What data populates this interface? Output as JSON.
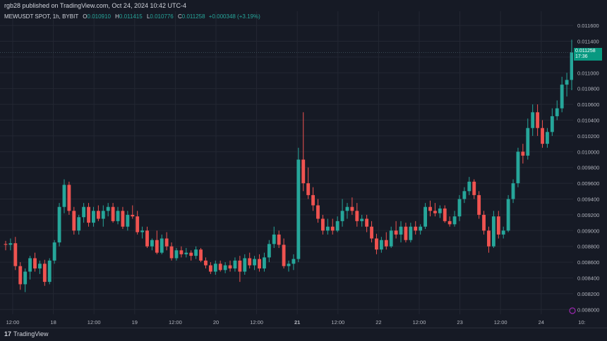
{
  "publisher_line": "rgb28 published on TradingView.com, Oct 24, 2024 10:42 UTC-4",
  "legend": {
    "symbol": "MEWUSDT SPOT, 1h, BYBIT",
    "o_label": "O",
    "o_value": "0.010910",
    "h_label": "H",
    "h_value": "0.011415",
    "l_label": "L",
    "l_value": "0.010776",
    "c_label": "C",
    "c_value": "0.011258",
    "change": "+0.000348 (+3.19%)"
  },
  "price_tag": {
    "price": "0.011258",
    "countdown": "17:36"
  },
  "footer": {
    "logo_text": "TradingView",
    "logo_mark": "17"
  },
  "colors": {
    "up": "#26a69a",
    "down": "#ef5350",
    "bg": "#161a25",
    "grid": "#232733",
    "tag": "#089981"
  },
  "chart_data": {
    "type": "candlestick",
    "title": "MEWUSDT SPOT, 1h, BYBIT",
    "ylim": [
      0.00794,
      0.01178
    ],
    "y_ticks": [
      "0.011600",
      "0.011400",
      "0.011200",
      "0.011000",
      "0.010800",
      "0.010600",
      "0.010400",
      "0.010200",
      "0.010000",
      "0.009800",
      "0.009600",
      "0.009400",
      "0.009200",
      "0.009000",
      "0.008800",
      "0.008600",
      "0.008400",
      "0.008200",
      "0.008000"
    ],
    "x_ticks": [
      "12:00",
      "18",
      "12:00",
      "19",
      "12:00",
      "20",
      "12:00",
      "21",
      "12:00",
      "22",
      "12:00",
      "23",
      "12:00",
      "24",
      "10:"
    ],
    "x_tick_bold_index": 7,
    "grid": true,
    "candles": [
      [
        0.00883,
        0.00887,
        0.00875,
        0.00882
      ],
      [
        0.00882,
        0.0089,
        0.00875,
        0.00884
      ],
      [
        0.00884,
        0.00892,
        0.0085,
        0.00855
      ],
      [
        0.00855,
        0.0086,
        0.00825,
        0.00832
      ],
      [
        0.00832,
        0.00852,
        0.00822,
        0.00848
      ],
      [
        0.00848,
        0.00868,
        0.00838,
        0.00865
      ],
      [
        0.00865,
        0.00872,
        0.00848,
        0.00852
      ],
      [
        0.00852,
        0.00862,
        0.00845,
        0.00858
      ],
      [
        0.00858,
        0.00863,
        0.0083,
        0.00835
      ],
      [
        0.00835,
        0.00865,
        0.00832,
        0.00862
      ],
      [
        0.00862,
        0.00888,
        0.00858,
        0.00885
      ],
      [
        0.00885,
        0.00935,
        0.0088,
        0.0093
      ],
      [
        0.0093,
        0.00965,
        0.00922,
        0.00958
      ],
      [
        0.00958,
        0.00962,
        0.0092,
        0.00925
      ],
      [
        0.00925,
        0.0093,
        0.00895,
        0.009
      ],
      [
        0.009,
        0.0092,
        0.00895,
        0.00917
      ],
      [
        0.00917,
        0.00935,
        0.0091,
        0.0093
      ],
      [
        0.0093,
        0.00935,
        0.00905,
        0.0091
      ],
      [
        0.0091,
        0.0093,
        0.00905,
        0.00925
      ],
      [
        0.00925,
        0.00932,
        0.00912,
        0.00915
      ],
      [
        0.00915,
        0.00932,
        0.00905,
        0.00925
      ],
      [
        0.00925,
        0.00935,
        0.00918,
        0.0093
      ],
      [
        0.0093,
        0.00935,
        0.0091,
        0.00912
      ],
      [
        0.00912,
        0.0093,
        0.00908,
        0.00925
      ],
      [
        0.00925,
        0.0093,
        0.00902,
        0.00905
      ],
      [
        0.00905,
        0.00925,
        0.009,
        0.0092
      ],
      [
        0.0092,
        0.00932,
        0.00915,
        0.00918
      ],
      [
        0.00918,
        0.00925,
        0.00895,
        0.00898
      ],
      [
        0.00898,
        0.00905,
        0.0089,
        0.009
      ],
      [
        0.009,
        0.00905,
        0.00878,
        0.0088
      ],
      [
        0.0088,
        0.0089,
        0.00875,
        0.00888
      ],
      [
        0.00888,
        0.009,
        0.0087,
        0.00872
      ],
      [
        0.00872,
        0.00895,
        0.0087,
        0.0089
      ],
      [
        0.0089,
        0.00898,
        0.00875,
        0.0088
      ],
      [
        0.0088,
        0.00885,
        0.00862,
        0.00865
      ],
      [
        0.00865,
        0.00878,
        0.00862,
        0.00875
      ],
      [
        0.00875,
        0.0088,
        0.00866,
        0.0087
      ],
      [
        0.0087,
        0.00878,
        0.00866,
        0.00872
      ],
      [
        0.00872,
        0.00875,
        0.00862,
        0.00868
      ],
      [
        0.00868,
        0.0088,
        0.00864,
        0.00876
      ],
      [
        0.00876,
        0.00878,
        0.0086,
        0.00862
      ],
      [
        0.00862,
        0.00866,
        0.00852,
        0.00856
      ],
      [
        0.00856,
        0.0086,
        0.00845,
        0.00848
      ],
      [
        0.00848,
        0.00862,
        0.00844,
        0.00858
      ],
      [
        0.00858,
        0.00862,
        0.00848,
        0.0085
      ],
      [
        0.0085,
        0.0086,
        0.00846,
        0.00856
      ],
      [
        0.00856,
        0.00862,
        0.00848,
        0.00852
      ],
      [
        0.00852,
        0.00866,
        0.00848,
        0.00862
      ],
      [
        0.00862,
        0.00868,
        0.00835,
        0.00848
      ],
      [
        0.00848,
        0.0087,
        0.00844,
        0.00865
      ],
      [
        0.00865,
        0.00872,
        0.00852,
        0.00856
      ],
      [
        0.00856,
        0.00868,
        0.0085,
        0.00864
      ],
      [
        0.00864,
        0.0087,
        0.00848,
        0.00852
      ],
      [
        0.00852,
        0.00872,
        0.00848,
        0.00866
      ],
      [
        0.00866,
        0.00888,
        0.0086,
        0.00883
      ],
      [
        0.00883,
        0.00905,
        0.00878,
        0.00895
      ],
      [
        0.00895,
        0.009,
        0.00878,
        0.00882
      ],
      [
        0.00882,
        0.0089,
        0.00852,
        0.00855
      ],
      [
        0.00855,
        0.00862,
        0.00848,
        0.00858
      ],
      [
        0.00858,
        0.0087,
        0.0085,
        0.00864
      ],
      [
        0.00864,
        0.01005,
        0.0086,
        0.0099
      ],
      [
        0.0099,
        0.0105,
        0.0095,
        0.0096
      ],
      [
        0.0096,
        0.0098,
        0.0094,
        0.00945
      ],
      [
        0.00945,
        0.00955,
        0.00925,
        0.00932
      ],
      [
        0.00932,
        0.0094,
        0.0091,
        0.00915
      ],
      [
        0.00915,
        0.0092,
        0.00895,
        0.009
      ],
      [
        0.009,
        0.00915,
        0.00895,
        0.00905
      ],
      [
        0.00905,
        0.00915,
        0.00895,
        0.009
      ],
      [
        0.009,
        0.00918,
        0.00898,
        0.00912
      ],
      [
        0.00912,
        0.0094,
        0.00905,
        0.00925
      ],
      [
        0.00925,
        0.00935,
        0.00915,
        0.0093
      ],
      [
        0.0093,
        0.00942,
        0.0092,
        0.00925
      ],
      [
        0.00925,
        0.00935,
        0.00905,
        0.00912
      ],
      [
        0.00912,
        0.0092,
        0.00905,
        0.00915
      ],
      [
        0.00915,
        0.0092,
        0.00898,
        0.00905
      ],
      [
        0.00905,
        0.00912,
        0.00885,
        0.0089
      ],
      [
        0.0089,
        0.00896,
        0.0087,
        0.00876
      ],
      [
        0.00876,
        0.00892,
        0.00872,
        0.00888
      ],
      [
        0.00888,
        0.00898,
        0.00876,
        0.0088
      ],
      [
        0.0088,
        0.00905,
        0.00878,
        0.009
      ],
      [
        0.009,
        0.00912,
        0.0089,
        0.00895
      ],
      [
        0.00895,
        0.00912,
        0.00885,
        0.00905
      ],
      [
        0.00905,
        0.0091,
        0.00885,
        0.00888
      ],
      [
        0.00888,
        0.0091,
        0.00885,
        0.00905
      ],
      [
        0.00905,
        0.00912,
        0.00895,
        0.009
      ],
      [
        0.009,
        0.00908,
        0.00895,
        0.00905
      ],
      [
        0.00905,
        0.00935,
        0.00902,
        0.0093
      ],
      [
        0.0093,
        0.00938,
        0.00918,
        0.00925
      ],
      [
        0.00925,
        0.00935,
        0.00918,
        0.00922
      ],
      [
        0.00922,
        0.00932,
        0.00916,
        0.00928
      ],
      [
        0.00928,
        0.00932,
        0.0091,
        0.00912
      ],
      [
        0.00912,
        0.00918,
        0.00905,
        0.00908
      ],
      [
        0.00908,
        0.00925,
        0.00905,
        0.00918
      ],
      [
        0.00918,
        0.00945,
        0.00912,
        0.0094
      ],
      [
        0.0094,
        0.00955,
        0.00935,
        0.0095
      ],
      [
        0.0095,
        0.00968,
        0.00945,
        0.00962
      ],
      [
        0.00962,
        0.00965,
        0.0094,
        0.00945
      ],
      [
        0.00945,
        0.0095,
        0.00915,
        0.0092
      ],
      [
        0.0092,
        0.00925,
        0.00895,
        0.009
      ],
      [
        0.009,
        0.00905,
        0.00872,
        0.0088
      ],
      [
        0.0088,
        0.00925,
        0.00878,
        0.00918
      ],
      [
        0.00918,
        0.00925,
        0.0089,
        0.00895
      ],
      [
        0.00895,
        0.00905,
        0.0089,
        0.009
      ],
      [
        0.009,
        0.00945,
        0.00898,
        0.0094
      ],
      [
        0.0094,
        0.00965,
        0.00935,
        0.0096
      ],
      [
        0.0096,
        0.01005,
        0.00955,
        0.01
      ],
      [
        0.01,
        0.0101,
        0.00985,
        0.00995
      ],
      [
        0.00995,
        0.01042,
        0.0099,
        0.0103
      ],
      [
        0.0103,
        0.0106,
        0.0102,
        0.0105
      ],
      [
        0.0105,
        0.0106,
        0.0102,
        0.0103
      ],
      [
        0.0103,
        0.0104,
        0.01005,
        0.0101
      ],
      [
        0.0101,
        0.0103,
        0.01005,
        0.01025
      ],
      [
        0.01025,
        0.01055,
        0.0102,
        0.01045
      ],
      [
        0.01045,
        0.01065,
        0.0104,
        0.01055
      ],
      [
        0.01055,
        0.01095,
        0.0105,
        0.01085
      ],
      [
        0.01085,
        0.011,
        0.0107,
        0.01091
      ],
      [
        0.01091,
        0.01142,
        0.01078,
        0.01126
      ]
    ],
    "current_price": 0.011258
  }
}
